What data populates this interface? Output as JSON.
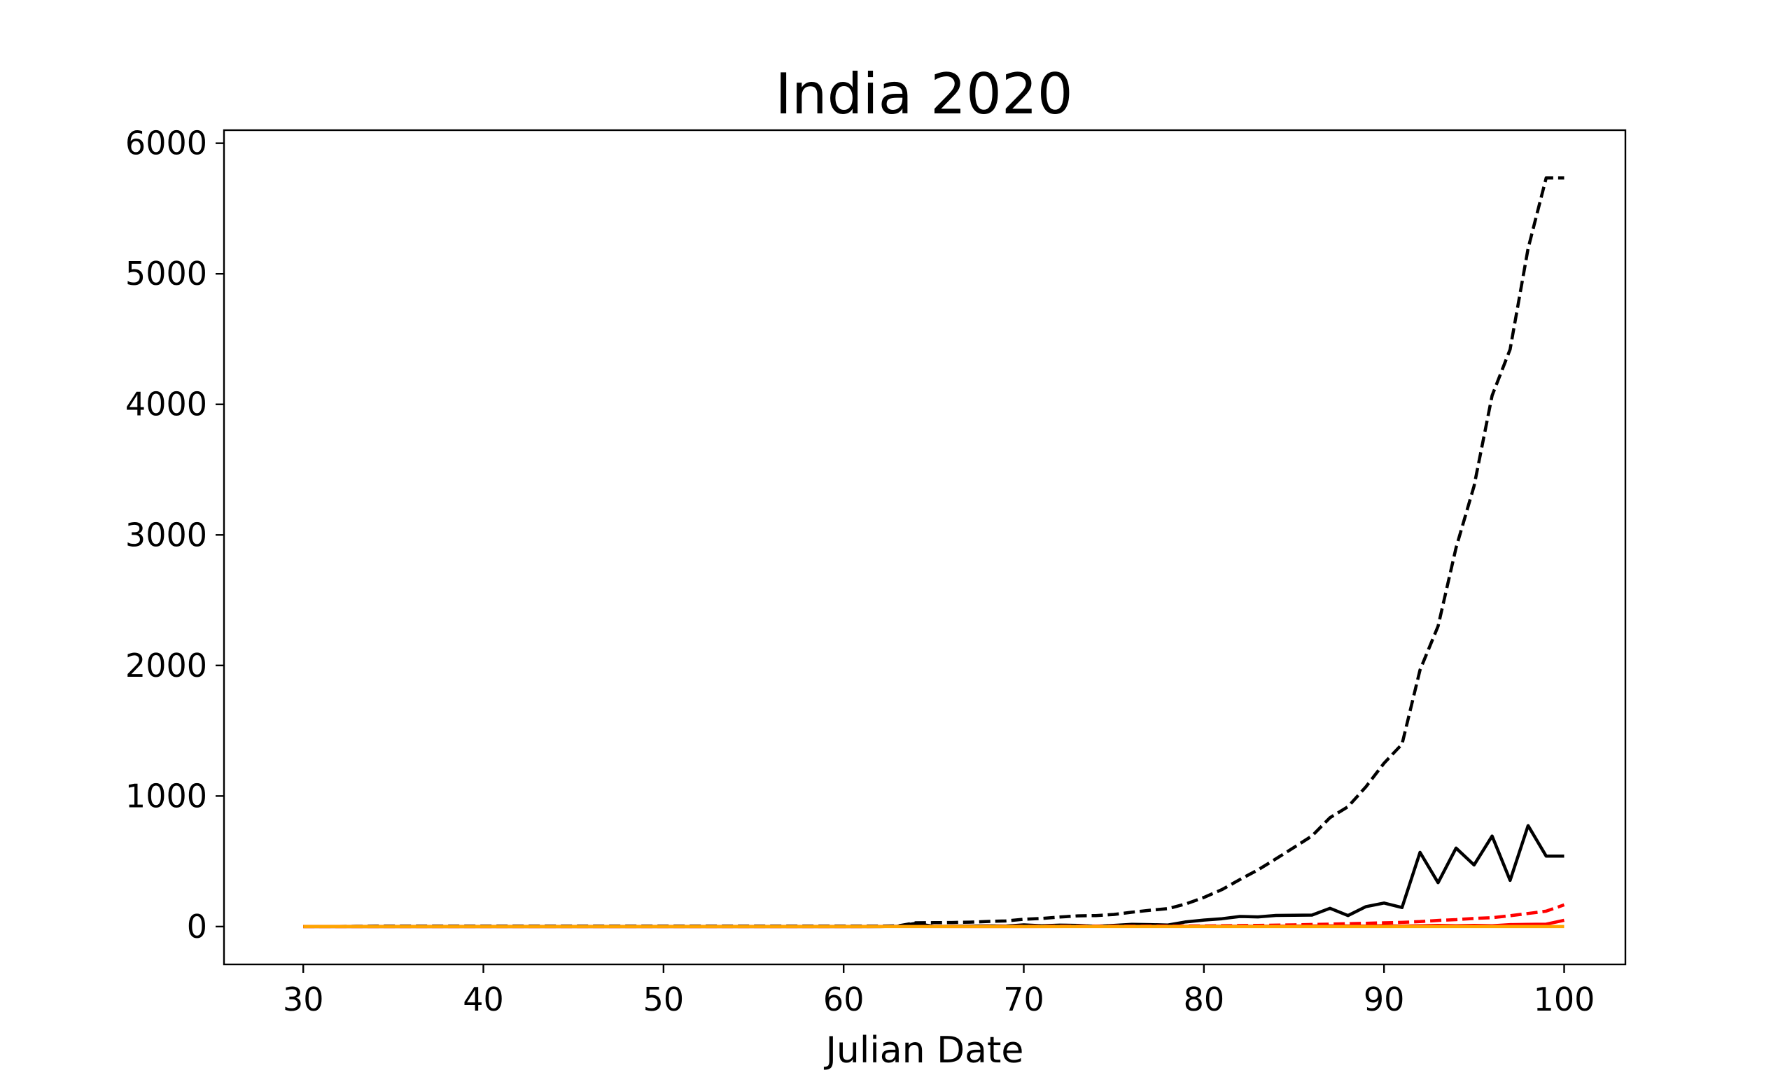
{
  "chart_data": {
    "type": "line",
    "title": "India 2020",
    "xlabel": "Julian Date",
    "ylabel": "",
    "xlim": [
      25.6,
      103.4
    ],
    "ylim": [
      -290,
      6100
    ],
    "xticks": [
      "30",
      "40",
      "50",
      "60",
      "70",
      "80",
      "90",
      "100"
    ],
    "yticks": [
      "0",
      "1000",
      "2000",
      "3000",
      "4000",
      "5000",
      "6000"
    ],
    "grid": false,
    "legend": "none",
    "series": [
      {
        "color": "#000000",
        "style": "dashed",
        "x": [
          30,
          32,
          34,
          36,
          38,
          40,
          42,
          44,
          46,
          48,
          50,
          52,
          54,
          56,
          58,
          60,
          62,
          63,
          64,
          65,
          66,
          67,
          68,
          69,
          70,
          71,
          72,
          73,
          74,
          75,
          76,
          77,
          78,
          79,
          80,
          81,
          82,
          83,
          84,
          85,
          86,
          87,
          88,
          89,
          90,
          91,
          92,
          93,
          94,
          95,
          96,
          97,
          98,
          99,
          100
        ],
        "y": [
          1,
          1,
          3,
          3,
          3,
          3,
          3,
          3,
          3,
          3,
          3,
          3,
          3,
          3,
          3,
          3,
          3,
          5,
          29,
          30,
          31,
          34,
          39,
          43,
          56,
          62,
          73,
          82,
          84,
          93,
          110,
          125,
          137,
          173,
          223,
          283,
          360,
          434,
          519,
          606,
          694,
          834,
          918,
          1071,
          1251,
          1397,
          1965,
          2301,
          2902,
          3374,
          4067,
          4421,
          5194,
          5734,
          5734
        ]
      },
      {
        "color": "#000000",
        "style": "solid",
        "x": [
          30,
          32,
          34,
          36,
          38,
          40,
          42,
          44,
          46,
          48,
          50,
          52,
          54,
          56,
          58,
          60,
          62,
          63,
          64,
          65,
          66,
          67,
          68,
          69,
          70,
          71,
          72,
          73,
          74,
          75,
          76,
          77,
          78,
          79,
          80,
          81,
          82,
          83,
          84,
          85,
          86,
          87,
          88,
          89,
          90,
          91,
          92,
          93,
          94,
          95,
          96,
          97,
          98,
          99,
          100
        ],
        "y": [
          0,
          0,
          0,
          0,
          0,
          0,
          0,
          0,
          0,
          0,
          0,
          0,
          0,
          0,
          0,
          0,
          0,
          2,
          24,
          1,
          2,
          3,
          5,
          4,
          13,
          6,
          11,
          9,
          2,
          9,
          17,
          15,
          12,
          36,
          50,
          60,
          77,
          74,
          85,
          87,
          88,
          140,
          84,
          153,
          180,
          146,
          568,
          336,
          601,
          472,
          693,
          354,
          773,
          540,
          540
        ]
      },
      {
        "color": "#ff0000",
        "style": "dashed",
        "x": [
          30,
          40,
          50,
          60,
          64,
          70,
          75,
          80,
          83,
          85,
          87,
          89,
          90,
          91,
          92,
          93,
          94,
          95,
          96,
          97,
          98,
          99,
          100
        ],
        "y": [
          0,
          0,
          0,
          0,
          1,
          2,
          3,
          5,
          9,
          13,
          19,
          25,
          29,
          32,
          38,
          47,
          53,
          62,
          68,
          83,
          100,
          118,
          166
        ]
      },
      {
        "color": "#ff0000",
        "style": "solid",
        "x": [
          30,
          40,
          50,
          60,
          64,
          70,
          75,
          80,
          83,
          85,
          87,
          89,
          90,
          91,
          92,
          93,
          94,
          95,
          96,
          97,
          98,
          99,
          100
        ],
        "y": [
          0,
          0,
          0,
          0,
          1,
          0,
          1,
          2,
          2,
          4,
          5,
          4,
          6,
          3,
          6,
          9,
          6,
          9,
          6,
          15,
          17,
          18,
          48
        ]
      },
      {
        "color": "#ffa500",
        "style": "solid",
        "x": [
          30,
          40,
          50,
          60,
          70,
          80,
          90,
          100
        ],
        "y": [
          0,
          0,
          0,
          0,
          0,
          0,
          0,
          0
        ]
      }
    ]
  }
}
